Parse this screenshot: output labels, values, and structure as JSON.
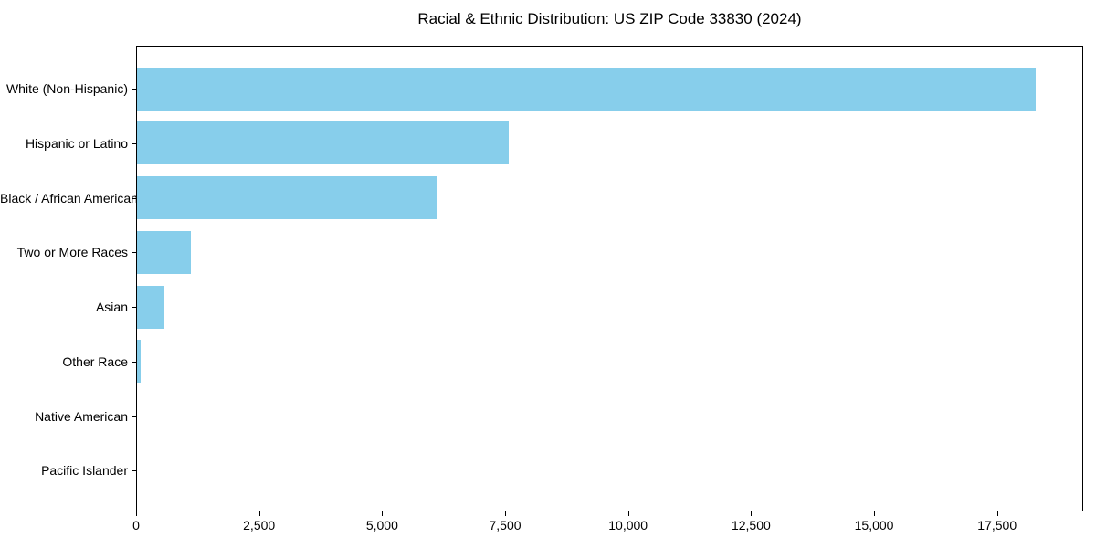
{
  "colors": {
    "bar": "#87CEEB",
    "axis": "#000000",
    "background": "#FFFFFF",
    "text": "#000000"
  },
  "chart_data": {
    "type": "bar",
    "orientation": "horizontal",
    "title": "Racial & Ethnic Distribution: US ZIP Code 33830 (2024)",
    "xlabel": "",
    "ylabel": "",
    "categories": [
      "White (Non-Hispanic)",
      "Hispanic or Latino",
      "Black / African American",
      "Two or More Races",
      "Asian",
      "Other Race",
      "Native American",
      "Pacific Islander"
    ],
    "values": [
      18300,
      7570,
      6100,
      1100,
      550,
      75,
      0,
      0
    ],
    "bar_color": "#87CEEB",
    "xlim": [
      0,
      19250
    ],
    "xticks": [
      0,
      2500,
      5000,
      7500,
      10000,
      12500,
      15000,
      17500
    ],
    "xtick_labels": [
      "0",
      "2,500",
      "5,000",
      "7,500",
      "10,000",
      "12,500",
      "15,000",
      "17,500"
    ],
    "grid": false,
    "legend": null
  }
}
